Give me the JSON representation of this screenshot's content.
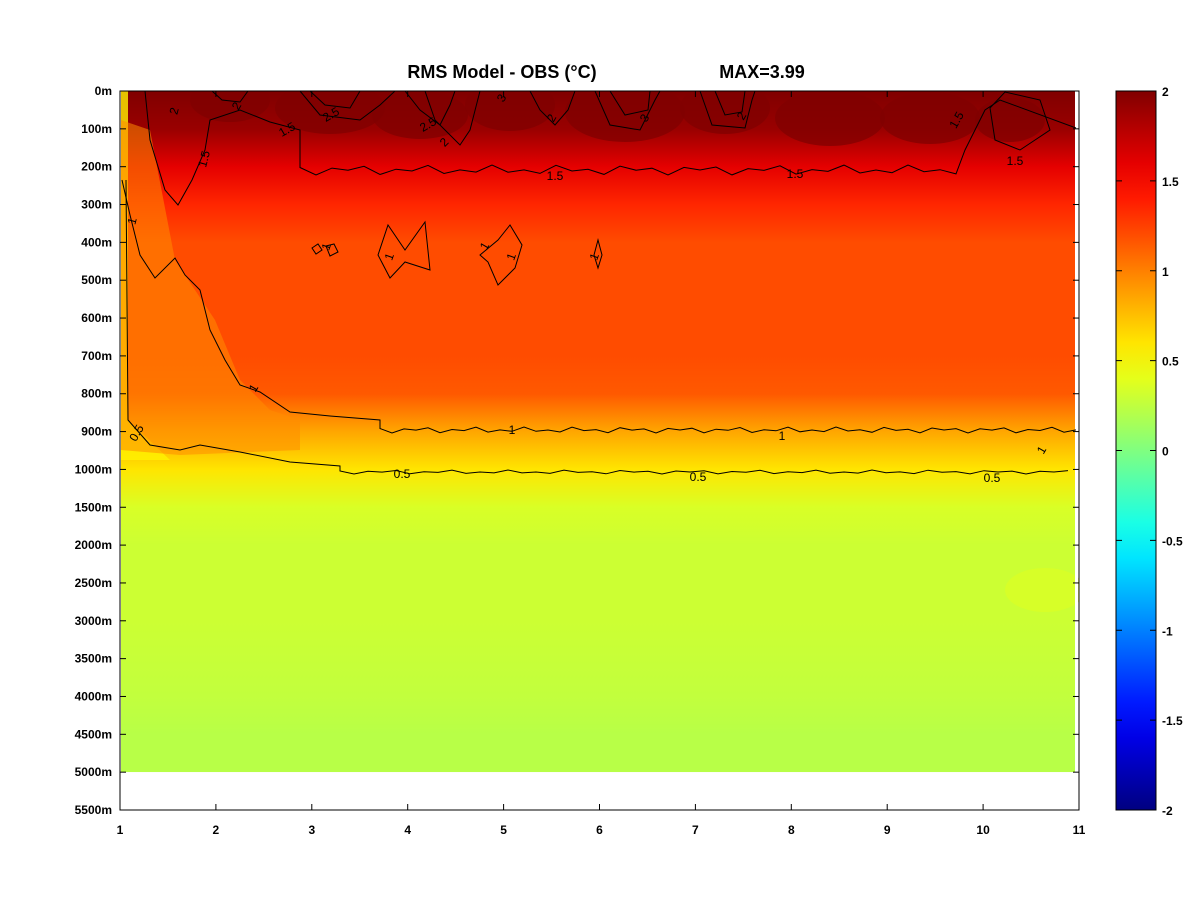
{
  "chart_data": {
    "type": "heatmap",
    "title": "RMS Model - OBS (°C)",
    "max_label": "MAX=3.99",
    "xlabel": "",
    "ylabel": "",
    "x_ticks": [
      "1",
      "2",
      "3",
      "4",
      "5",
      "6",
      "7",
      "8",
      "9",
      "10",
      "11"
    ],
    "xlim": [
      1,
      11
    ],
    "y_ticks": [
      "0m",
      "100m",
      "200m",
      "300m",
      "400m",
      "500m",
      "600m",
      "700m",
      "800m",
      "900m",
      "1000m",
      "1500m",
      "2000m",
      "2500m",
      "3000m",
      "3500m",
      "4000m",
      "4500m",
      "5000m",
      "5500m"
    ],
    "y_reversed": true,
    "colorbar": {
      "min": -2,
      "max": 2,
      "ticks": [
        "2",
        "1.5",
        "1",
        "0.5",
        "0",
        "-0.5",
        "-1",
        "-1.5",
        "-2"
      ],
      "colormap": "jet"
    },
    "contour_levels": [
      0.5,
      1,
      1.5,
      2,
      2.5,
      3
    ],
    "contour_labels": [
      "0.5",
      "0.5",
      "0.5",
      "0.5",
      "1",
      "1",
      "1",
      "1",
      "1",
      "1",
      "1",
      "1",
      "1",
      "1",
      "1.5",
      "1.5",
      "1.5",
      "1.5",
      "1.5",
      "1.5",
      "2",
      "2",
      "2",
      "2",
      "2",
      "2.5",
      "2.5",
      "3",
      "3"
    ],
    "depth_profile": [
      {
        "depth": "0m",
        "value": 2.0
      },
      {
        "depth": "100m",
        "value": 1.9
      },
      {
        "depth": "200m",
        "value": 1.6
      },
      {
        "depth": "300m",
        "value": 1.35
      },
      {
        "depth": "400m",
        "value": 1.2
      },
      {
        "depth": "500m",
        "value": 1.2
      },
      {
        "depth": "600m",
        "value": 1.2
      },
      {
        "depth": "700m",
        "value": 1.2
      },
      {
        "depth": "800m",
        "value": 1.15
      },
      {
        "depth": "900m",
        "value": 0.85
      },
      {
        "depth": "1000m",
        "value": 0.6
      },
      {
        "depth": "1500m",
        "value": 0.35
      },
      {
        "depth": "2000m",
        "value": 0.3
      },
      {
        "depth": "2500m",
        "value": 0.3
      },
      {
        "depth": "3000m",
        "value": 0.3
      },
      {
        "depth": "3500m",
        "value": 0.28
      },
      {
        "depth": "4000m",
        "value": 0.26
      },
      {
        "depth": "4500m",
        "value": 0.22
      },
      {
        "depth": "5000m",
        "value": 0.22
      }
    ]
  }
}
